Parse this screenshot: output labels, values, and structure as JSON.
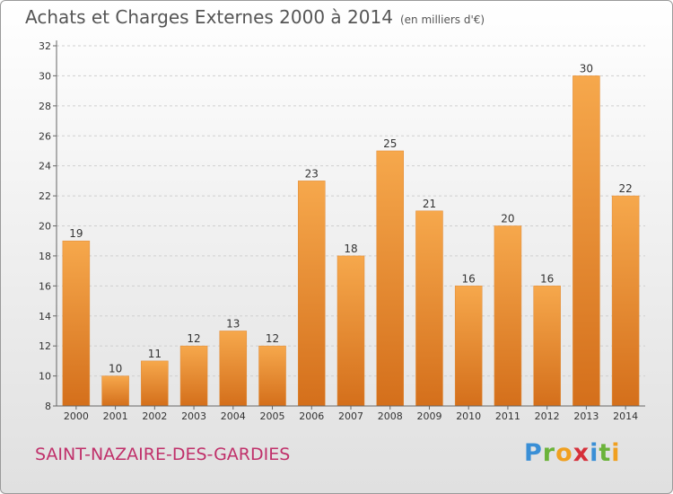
{
  "header": {
    "title": "Achats et Charges Externes 2000 à 2014",
    "unit": "(en milliers d'€)"
  },
  "footer": {
    "commune": "SAINT-NAZAIRE-DES-GARDIES",
    "logo_letters": [
      "P",
      "r",
      "o",
      "x",
      "i",
      "t",
      "i"
    ],
    "logo_colors": [
      "#3a8fd6",
      "#6bb33a",
      "#f0a020",
      "#d6303a",
      "#3a8fd6",
      "#6bb33a",
      "#f0a020"
    ]
  },
  "chart_data": {
    "type": "bar",
    "title": "Achats et Charges Externes 2000 à 2014",
    "categories": [
      "2000",
      "2001",
      "2002",
      "2003",
      "2004",
      "2005",
      "2006",
      "2007",
      "2008",
      "2009",
      "2010",
      "2011",
      "2012",
      "2013",
      "2014"
    ],
    "values": [
      19,
      10,
      11,
      12,
      13,
      12,
      23,
      18,
      25,
      21,
      16,
      20,
      16,
      30,
      22
    ],
    "ylim": [
      8,
      32
    ],
    "yticks": [
      8,
      10,
      12,
      14,
      16,
      18,
      20,
      22,
      24,
      26,
      28,
      30,
      32
    ],
    "grid": true,
    "bar_color_light": "#f6a84c",
    "bar_color_dark": "#d46f1b"
  }
}
